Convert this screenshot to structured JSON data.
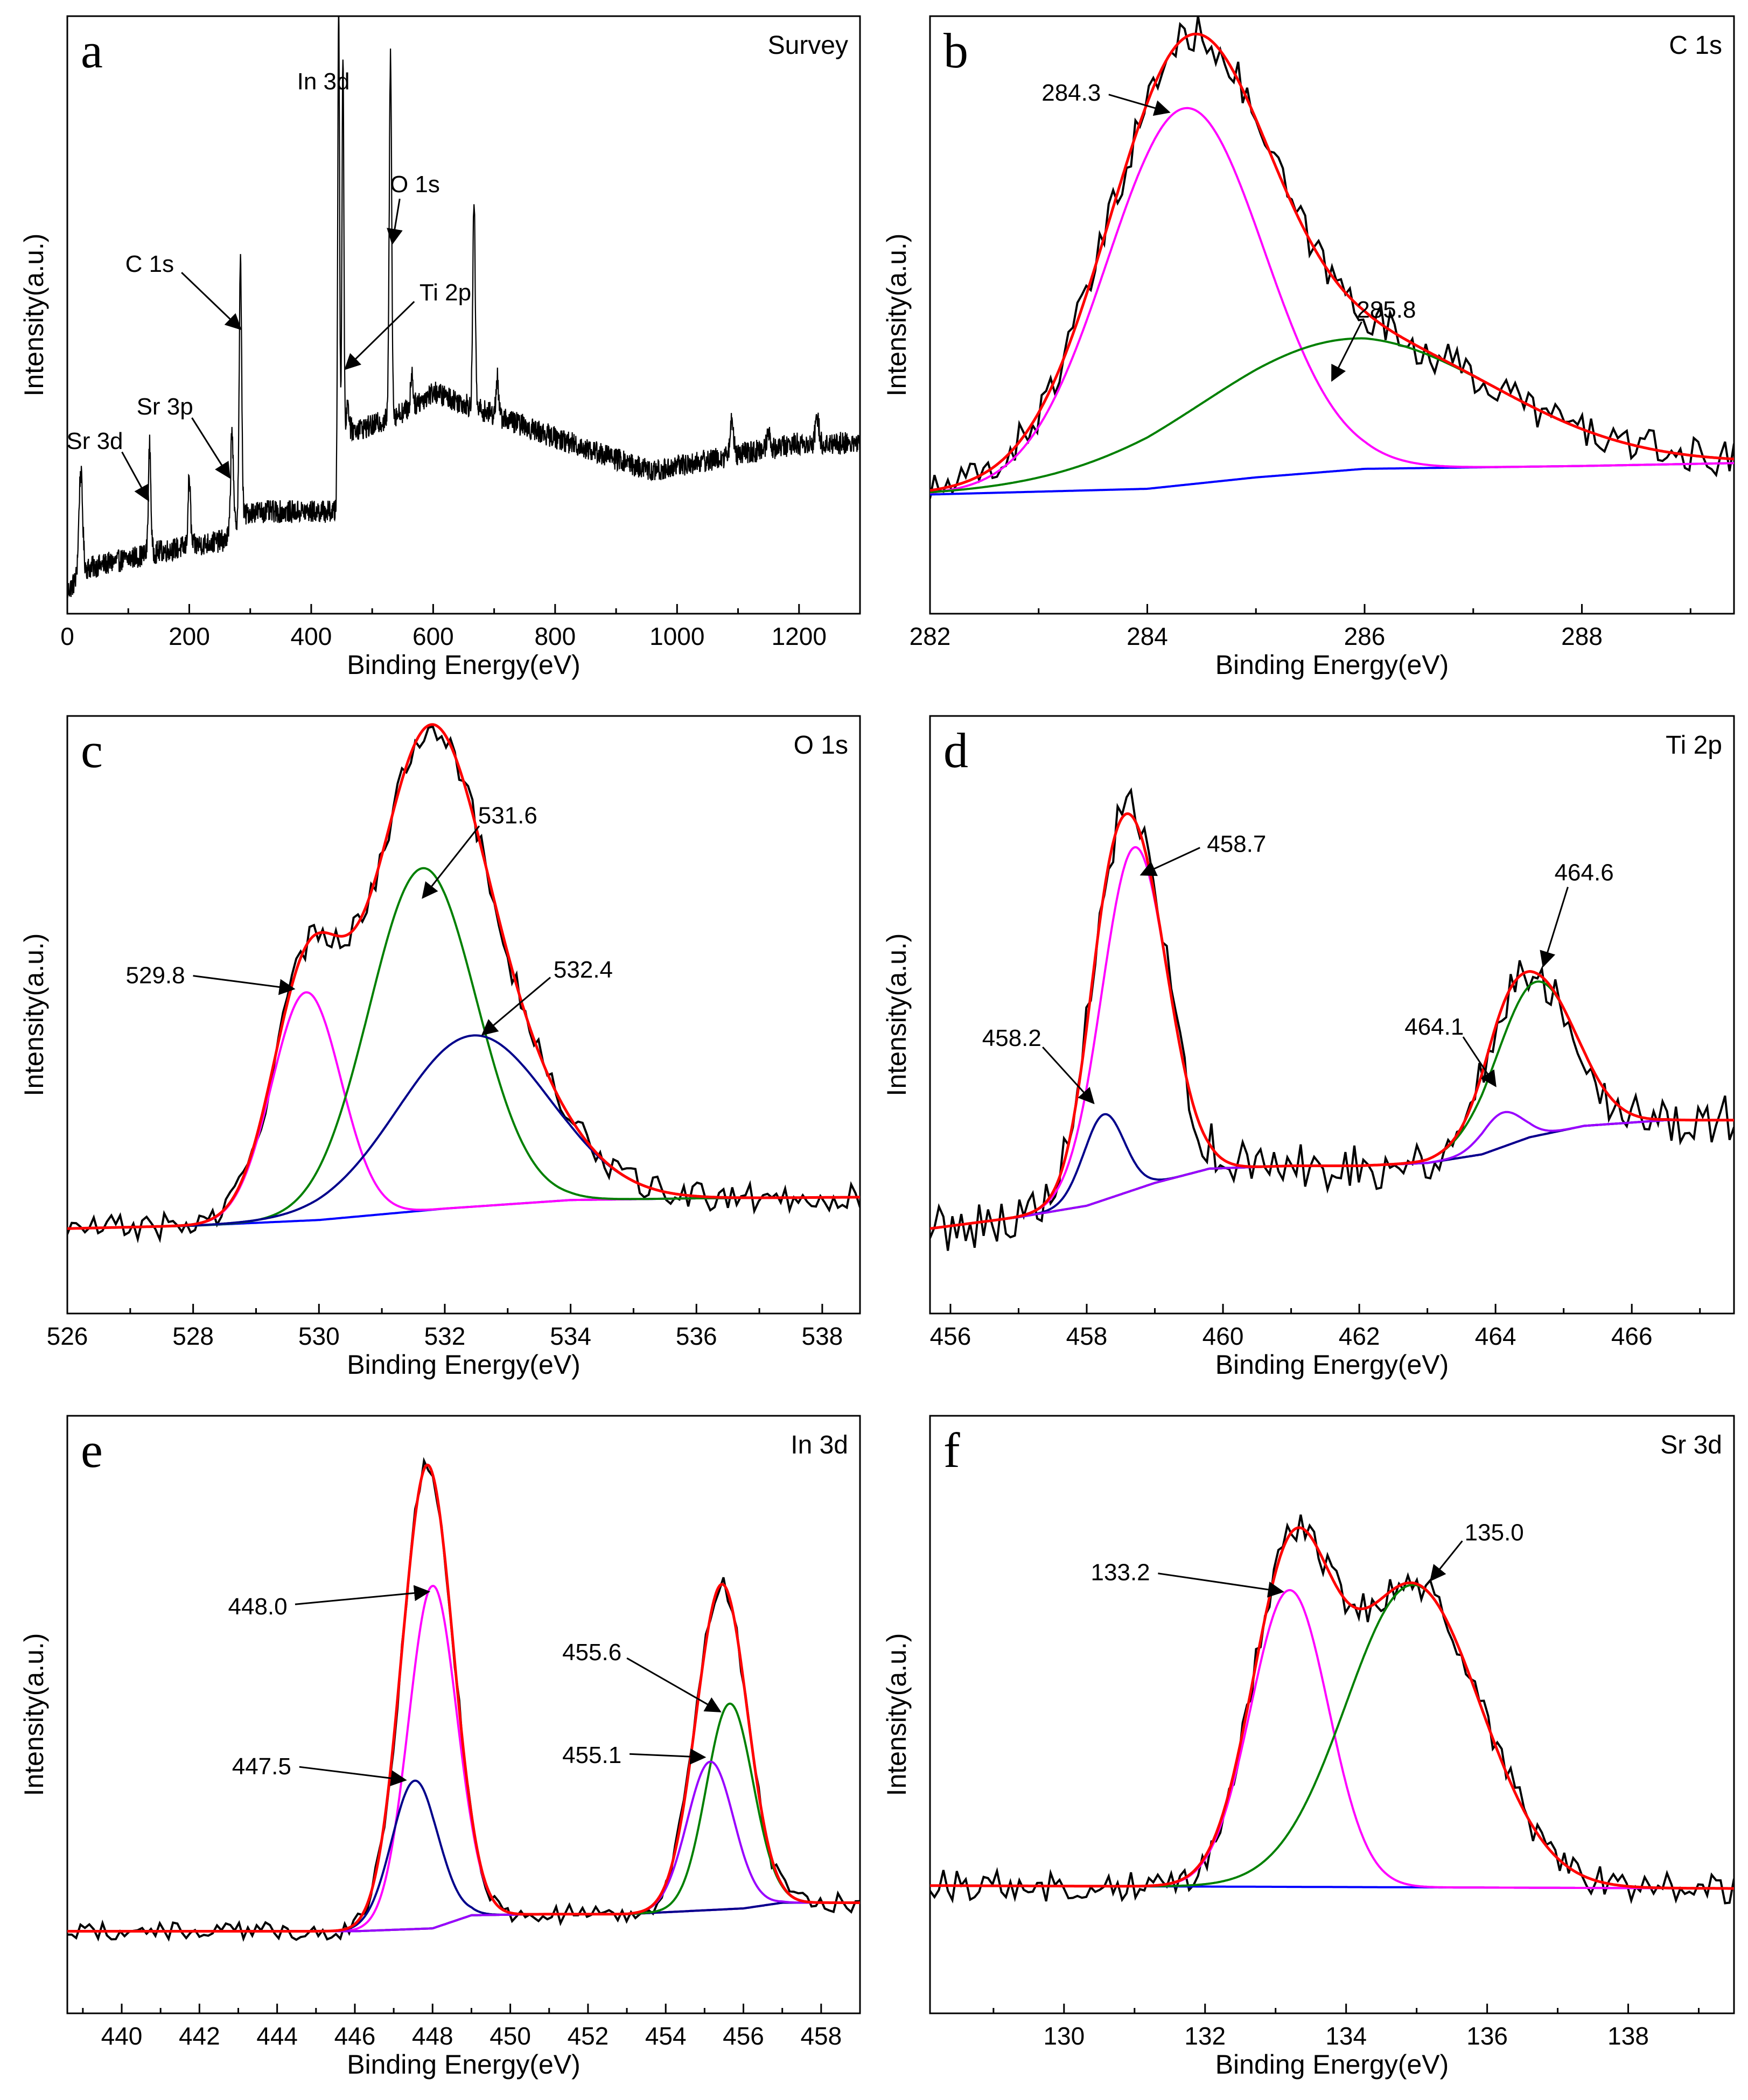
{
  "figure": {
    "xlabel": "Binding Energy(eV)",
    "ylabel": "Intensity(a.u.)"
  },
  "colors": {
    "raw": "#000000",
    "envelope": "#ff0000",
    "magenta": "#ff00ff",
    "green": "#008000",
    "blue": "#0000ff",
    "navy": "#00008b",
    "purple": "#9900ff",
    "axis": "#000000"
  },
  "chart_data": [
    {
      "panel": "a",
      "title": "Survey",
      "type": "line",
      "xlabel": "Binding Energy(eV)",
      "ylabel": "Intensity(a.u.)",
      "xlim": [
        0,
        1300
      ],
      "ylim": [
        0,
        100
      ],
      "xticks": [
        0,
        200,
        400,
        600,
        800,
        1000,
        1200
      ],
      "series": [
        {
          "name": "survey",
          "color": "#000000",
          "baseline": [
            [
              0,
              2
            ],
            [
              30,
              6
            ],
            [
              150,
              9
            ],
            [
              260,
              11
            ],
            [
              275,
              14
            ],
            [
              300,
              16
            ],
            [
              440,
              16
            ],
            [
              450,
              30
            ],
            [
              500,
              31
            ],
            [
              560,
              34
            ],
            [
              600,
              37
            ],
            [
              650,
              35
            ],
            [
              700,
              33
            ],
            [
              800,
              29
            ],
            [
              960,
              23
            ],
            [
              1000,
              24
            ],
            [
              1100,
              26
            ],
            [
              1200,
              28
            ],
            [
              1300,
              28
            ]
          ],
          "peaks": [
            [
              22,
              18,
              3
            ],
            [
              135,
              19,
              2
            ],
            [
              200,
              12,
              2
            ],
            [
              270,
              18,
              2
            ],
            [
              284,
              45,
              2
            ],
            [
              445,
              82,
              1.5
            ],
            [
              452,
              66,
              1.5
            ],
            [
              460,
              5,
              2
            ],
            [
              530,
              63,
              2
            ],
            [
              565,
              6,
              2
            ],
            [
              667,
              36,
              2
            ],
            [
              705,
              7,
              2
            ],
            [
              1090,
              6,
              3
            ],
            [
              1150,
              3,
              3
            ],
            [
              1230,
              4,
              3
            ]
          ],
          "noise": 2
        }
      ],
      "annotations": [
        {
          "text": "In 3d",
          "tx": 420,
          "ty": 90,
          "ax": 445,
          "ay": 81,
          "arrow": false
        },
        {
          "text": "O 1s",
          "tx": 570,
          "ty": 72,
          "ax": 533,
          "ay": 63,
          "arrow": true
        },
        {
          "text": "Ti 2p",
          "tx": 620,
          "ty": 53,
          "ax": 456,
          "ay": 41,
          "arrow": true
        },
        {
          "text": "C 1s",
          "tx": 135,
          "ty": 58,
          "ax": 284,
          "ay": 48,
          "arrow": true
        },
        {
          "text": "Sr 3p",
          "tx": 160,
          "ty": 33,
          "ax": 266,
          "ay": 22,
          "arrow": true
        },
        {
          "text": "Sr 3d",
          "tx": 45,
          "ty": 27,
          "ax": 133,
          "ay": 18,
          "arrow": true
        }
      ]
    },
    {
      "panel": "b",
      "title": "C 1s",
      "type": "line",
      "xlabel": "Binding Energy(eV)",
      "ylabel": "Intensity(a.u.)",
      "xlim": [
        282,
        289.4
      ],
      "ylim": [
        0,
        100
      ],
      "xticks": [
        282,
        284,
        286,
        288
      ],
      "raw_noise": 3,
      "series": [
        {
          "name": "background",
          "color": "#0000ff",
          "baseline": [
            [
              282,
              19
            ],
            [
              284,
              20
            ],
            [
              285,
              22
            ],
            [
              286,
              23.5
            ],
            [
              288,
              24
            ],
            [
              289.4,
              24.5
            ]
          ],
          "peaks": []
        },
        {
          "name": "284.3",
          "color": "#ff00ff",
          "use_background": true,
          "peaks": [
            [
              284.35,
              66,
              0.72
            ]
          ]
        },
        {
          "name": "285.8",
          "color": "#008000",
          "use_background": true,
          "peaks": [
            [
              285.85,
              23,
              1.35
            ]
          ]
        }
      ],
      "annotations": [
        {
          "text": "284.3",
          "tx": 283.3,
          "ty": 88,
          "ax": 284.2,
          "ay": 86,
          "arrow": true
        },
        {
          "text": "285.8",
          "tx": 286.2,
          "ty": 50,
          "ax": 285.7,
          "ay": 39,
          "arrow": true
        }
      ]
    },
    {
      "panel": "c",
      "title": "O 1s",
      "type": "line",
      "xlabel": "Binding Energy(eV)",
      "ylabel": "Intensity(a.u.)",
      "xlim": [
        526,
        538.6
      ],
      "ylim": [
        0,
        100
      ],
      "xticks": [
        526,
        528,
        530,
        532,
        534,
        536,
        538
      ],
      "raw_noise": 2.2,
      "series": [
        {
          "name": "background",
          "color": "#0000ff",
          "baseline": [
            [
              526,
              13
            ],
            [
              528,
              13.5
            ],
            [
              530,
              14.5
            ],
            [
              532,
              16.5
            ],
            [
              534,
              18
            ],
            [
              536,
              18.3
            ],
            [
              538.6,
              18.5
            ]
          ],
          "peaks": []
        },
        {
          "name": "529.8",
          "color": "#ff00ff",
          "use_background": true,
          "peaks": [
            [
              529.8,
              40,
              0.55
            ]
          ]
        },
        {
          "name": "531.6",
          "color": "#008000",
          "use_background": true,
          "peaks": [
            [
              531.65,
              60,
              0.85
            ]
          ]
        },
        {
          "name": "532.4",
          "color": "#00008b",
          "use_background": true,
          "peaks": [
            [
              532.45,
              30,
              1.2
            ]
          ]
        }
      ],
      "annotations": [
        {
          "text": "529.8",
          "tx": 527.4,
          "ty": 56,
          "ax": 529.6,
          "ay": 55,
          "arrow": true
        },
        {
          "text": "531.6",
          "tx": 533.0,
          "ty": 84,
          "ax": 531.65,
          "ay": 71,
          "arrow": true
        },
        {
          "text": "532.4",
          "tx": 534.2,
          "ty": 57,
          "ax": 532.6,
          "ay": 47,
          "arrow": true
        }
      ]
    },
    {
      "panel": "d",
      "title": "Ti 2p",
      "type": "line",
      "xlabel": "Binding Energy(eV)",
      "ylabel": "Intensity(a.u.)",
      "xlim": [
        455.7,
        467.5
      ],
      "ylim": [
        0,
        100
      ],
      "xticks": [
        456,
        458,
        460,
        462,
        464,
        466
      ],
      "raw_noise": 4,
      "series": [
        {
          "name": "background",
          "color": "#9933cc",
          "baseline": [
            [
              455.7,
              13
            ],
            [
              457,
              15
            ],
            [
              458,
              17
            ],
            [
              459,
              21
            ],
            [
              459.8,
              23.5
            ],
            [
              461,
              24
            ],
            [
              462,
              24
            ],
            [
              463,
              24.5
            ],
            [
              463.8,
              26
            ],
            [
              464.5,
              29
            ],
            [
              465.3,
              31
            ],
            [
              466.5,
              32
            ],
            [
              467.5,
              32
            ]
          ],
          "peaks": []
        },
        {
          "name": "458.7",
          "color": "#ff00ff",
          "use_background": true,
          "peaks": [
            [
              458.7,
              60,
              0.48
            ]
          ]
        },
        {
          "name": "458.2",
          "color": "#00008b",
          "use_background": true,
          "peaks": [
            [
              458.25,
              15,
              0.3
            ]
          ]
        },
        {
          "name": "464.6",
          "color": "#008000",
          "use_background": true,
          "peaks": [
            [
              464.6,
              27,
              0.58
            ]
          ]
        },
        {
          "name": "464.1",
          "color": "#9900ff",
          "use_background": true,
          "peaks": [
            [
              464.1,
              6,
              0.3
            ]
          ]
        }
      ],
      "annotations": [
        {
          "text": "458.7",
          "tx": 460.2,
          "ty": 79,
          "ax": 458.8,
          "ay": 75,
          "arrow": true
        },
        {
          "text": "458.2",
          "tx": 456.9,
          "ty": 45,
          "ax": 458.1,
          "ay": 35,
          "arrow": true
        },
        {
          "text": "464.6",
          "tx": 465.3,
          "ty": 74,
          "ax": 464.7,
          "ay": 59,
          "arrow": true
        },
        {
          "text": "464.1",
          "tx": 463.1,
          "ty": 47,
          "ax": 464.0,
          "ay": 38,
          "arrow": true
        }
      ]
    },
    {
      "panel": "e",
      "title": "In 3d",
      "type": "line",
      "xlabel": "Binding Energy(eV)",
      "ylabel": "Intensity(a.u.)",
      "xlim": [
        438.6,
        459
      ],
      "ylim": [
        0,
        100
      ],
      "xticks": [
        440,
        442,
        444,
        446,
        448,
        450,
        452,
        454,
        456,
        458
      ],
      "raw_noise": 1.5,
      "series": [
        {
          "name": "background",
          "color": "#8a2be2",
          "baseline": [
            [
              438.6,
              12.5
            ],
            [
              446,
              12.5
            ],
            [
              448,
              13
            ],
            [
              449,
              15.3
            ],
            [
              451,
              15.5
            ],
            [
              453,
              15.5
            ],
            [
              456,
              16.5
            ],
            [
              457,
              17.5
            ],
            [
              459,
              17.5
            ]
          ],
          "peaks": []
        },
        {
          "name": "448.0",
          "color": "#ff00ff",
          "use_background": true,
          "peaks": [
            [
              448.0,
              60,
              0.62
            ]
          ]
        },
        {
          "name": "447.5",
          "color": "#00008b",
          "use_background": true,
          "peaks": [
            [
              447.55,
              26,
              0.6
            ]
          ]
        },
        {
          "name": "455.6",
          "color": "#008000",
          "use_background": true,
          "peaks": [
            [
              455.65,
              36,
              0.6
            ]
          ]
        },
        {
          "name": "455.1",
          "color": "#9900ff",
          "use_background": true,
          "peaks": [
            [
              455.15,
              26,
              0.6
            ]
          ]
        }
      ],
      "annotations": [
        {
          "text": "448.0",
          "tx": 443.5,
          "ty": 68,
          "ax": 447.9,
          "ay": 72,
          "arrow": true
        },
        {
          "text": "447.5",
          "tx": 443.6,
          "ty": 40,
          "ax": 447.3,
          "ay": 39,
          "arrow": true
        },
        {
          "text": "455.6",
          "tx": 452.1,
          "ty": 60,
          "ax": 455.4,
          "ay": 51,
          "arrow": true
        },
        {
          "text": "455.1",
          "tx": 452.1,
          "ty": 42,
          "ax": 455.0,
          "ay": 43,
          "arrow": true
        }
      ]
    },
    {
      "panel": "f",
      "title": "Sr 3d",
      "type": "line",
      "xlabel": "Binding Energy(eV)",
      "ylabel": "Intensity(a.u.)",
      "xlim": [
        128.1,
        139.5
      ],
      "ylim": [
        0,
        100
      ],
      "xticks": [
        130,
        132,
        134,
        136,
        138
      ],
      "raw_noise": 2.5,
      "series": [
        {
          "name": "background",
          "color": "#0000ff",
          "baseline": [
            [
              128.1,
              20.5
            ],
            [
              139.5,
              20
            ]
          ],
          "peaks": []
        },
        {
          "name": "133.2",
          "color": "#ff00ff",
          "use_background": true,
          "peaks": [
            [
              133.2,
              52,
              0.55
            ]
          ]
        },
        {
          "name": "135.0",
          "color": "#008000",
          "use_background": true,
          "peaks": [
            [
              134.95,
              53,
              0.95
            ]
          ]
        }
      ],
      "annotations": [
        {
          "text": "133.2",
          "tx": 130.8,
          "ty": 74,
          "ax": 133.1,
          "ay": 72,
          "arrow": true
        },
        {
          "text": "135.0",
          "tx": 136.1,
          "ty": 81,
          "ax": 135.2,
          "ay": 74,
          "arrow": true
        }
      ]
    }
  ]
}
